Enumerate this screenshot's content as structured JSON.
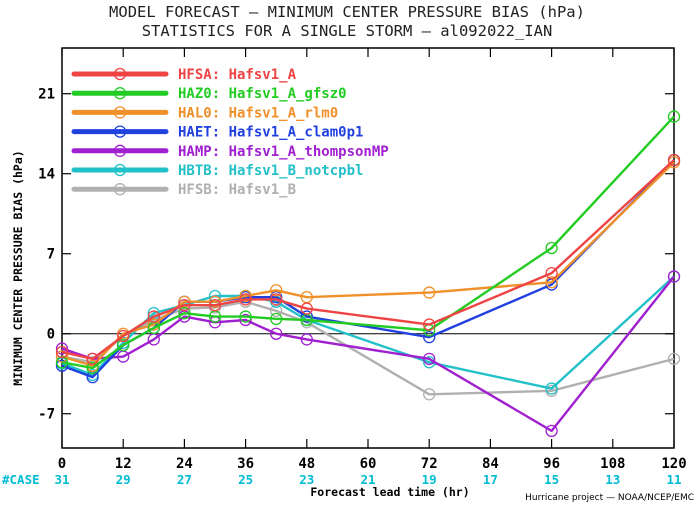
{
  "chart_data": {
    "type": "line",
    "title": "MODEL FORECAST — MINIMUM CENTER PRESSURE BIAS (hPa)",
    "subtitle": "STATISTICS FOR A SINGLE STORM — al092022_IAN",
    "xlabel": "Forecast lead time (hr)",
    "ylabel": "MINIMUM CENTER PRESSURE BIAS (hPa)",
    "x_ticks": [
      0,
      12,
      24,
      36,
      48,
      60,
      72,
      84,
      96,
      108,
      120
    ],
    "x_tick_labels": [
      "0",
      "12",
      "24",
      "36",
      "48",
      "60",
      "72",
      "84",
      "96",
      "108",
      "120"
    ],
    "y_ticks": [
      -7,
      0,
      7,
      14,
      21
    ],
    "y_tick_labels": [
      "-7",
      "0",
      "7",
      "14",
      "21"
    ],
    "xlim": [
      0,
      120
    ],
    "ylim": [
      -10,
      25
    ],
    "zero_line": true,
    "grid": false,
    "legend_position": "top-left",
    "case_label": "#CASE",
    "case_label_color": "#00bcd4",
    "case_counts": [
      "31",
      "29",
      "27",
      "25",
      "23",
      "21",
      "19",
      "17",
      "15",
      "13",
      "11"
    ],
    "credit": "Hurricane project — NOAA/NCEP/EMC",
    "series": [
      {
        "name": "HFSA: Hafsv1_A",
        "color": "#ee4444",
        "x": [
          0,
          6,
          12,
          18,
          24,
          30,
          36,
          42,
          48,
          72,
          96,
          120
        ],
        "y": [
          -1.6,
          -2.2,
          -0.2,
          1.5,
          2.5,
          2.5,
          3.0,
          3.0,
          2.2,
          0.8,
          5.3,
          15.2
        ]
      },
      {
        "name": "HAZ0: Hafsv1_A_gfsz0",
        "color": "#22cc22",
        "x": [
          0,
          6,
          12,
          18,
          24,
          30,
          36,
          42,
          48,
          72,
          96,
          120
        ],
        "y": [
          -2.5,
          -3.0,
          -1.0,
          0.5,
          1.8,
          1.5,
          1.5,
          1.3,
          1.2,
          0.3,
          7.5,
          19.0
        ]
      },
      {
        "name": "HAL0: Hafsv1_A_rlm0",
        "color": "#f0902a",
        "x": [
          0,
          6,
          12,
          18,
          24,
          30,
          36,
          42,
          48,
          72,
          96,
          120
        ],
        "y": [
          -2.0,
          -2.8,
          0.0,
          0.8,
          2.8,
          2.8,
          3.3,
          3.8,
          3.2,
          3.6,
          4.5,
          15.0
        ]
      },
      {
        "name": "HAET: Hafsv1_A_clam0p1",
        "color": "#2040e0",
        "x": [
          0,
          6,
          12,
          18,
          24,
          30,
          36,
          42,
          48,
          72,
          96,
          120
        ],
        "y": [
          -2.8,
          -3.8,
          -1.0,
          0.5,
          2.8,
          2.8,
          3.2,
          3.2,
          1.5,
          -0.3,
          4.3,
          15.2
        ]
      },
      {
        "name": "HAMP: Hafsv1_A_thompsonMP",
        "color": "#a020d0",
        "x": [
          0,
          6,
          12,
          18,
          24,
          30,
          36,
          42,
          48,
          72,
          96,
          120
        ],
        "y": [
          -1.3,
          -2.2,
          -2.0,
          -0.5,
          1.5,
          1.0,
          1.2,
          0.0,
          -0.5,
          -2.2,
          -8.5,
          5.0
        ]
      },
      {
        "name": "HBTB: Hafsv1_B_notcpbl",
        "color": "#22c0c8",
        "x": [
          0,
          6,
          12,
          18,
          24,
          30,
          36,
          42,
          48,
          72,
          96,
          120
        ],
        "y": [
          -2.6,
          -3.6,
          -0.8,
          1.8,
          2.5,
          3.3,
          3.3,
          2.8,
          1.2,
          -2.5,
          -4.8,
          5.0
        ]
      },
      {
        "name": "HFSB: Hafsv1_B",
        "color": "#b0b0b0",
        "x": [
          0,
          6,
          12,
          18,
          24,
          30,
          36,
          42,
          48,
          72,
          96,
          120
        ],
        "y": [
          -2.0,
          -2.5,
          -0.2,
          1.2,
          2.2,
          2.3,
          2.8,
          2.0,
          1.0,
          -5.3,
          -5.0,
          -2.2
        ]
      }
    ]
  }
}
